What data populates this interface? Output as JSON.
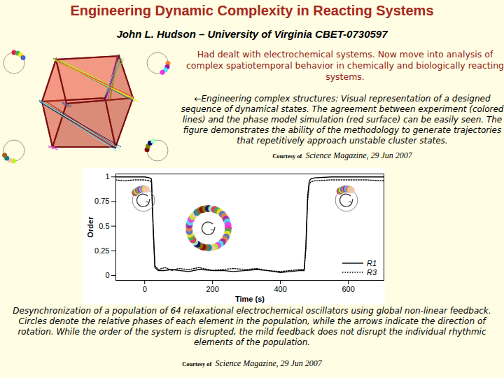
{
  "header": {
    "title": "Engineering Dynamic Complexity in Reacting Systems",
    "subtitle": "John L. Hudson – University of Virginia CBET-0730597"
  },
  "intro": "Had dealt with electrochemical systems.  Now move into analysis of complex spatiotemporal behavior in chemically and biologically reacting systems.",
  "figure_text": "←Engineering complex structures: Visual representation of a designed sequence of dynamical states.  The agreement between experiment (colored lines) and the phase model simulation (red surface) can be easily seen.  The figure demonstrates the ability of the methodology to generate trajectories that repetitively approach unstable cluster states.",
  "figure_credit": {
    "prefix": "Courtesy of",
    "source": "Science Magazine, 29 Jun 2007"
  },
  "chart_data": {
    "type": "line",
    "x_label": "Time (s)",
    "y_label": "Order",
    "xlim": [
      -85,
      705
    ],
    "xticks": [
      0,
      200,
      400,
      600
    ],
    "ylim": [
      -0.05,
      1.03
    ],
    "yticks": [
      0,
      0.25,
      0.5,
      0.75,
      1
    ],
    "legend": "lower right",
    "x": [
      -85,
      -60,
      -30,
      0,
      15,
      20,
      25,
      30,
      40,
      60,
      80,
      100,
      130,
      160,
      200,
      230,
      260,
      300,
      330,
      360,
      400,
      430,
      460,
      470,
      475,
      480,
      485,
      490,
      500,
      550,
      600,
      650,
      705
    ],
    "series": [
      {
        "name": "R1",
        "color": "#000000",
        "line_style": "solid",
        "values": [
          1,
          1,
          1,
          1,
          0.99,
          0.98,
          0.5,
          0.08,
          0.05,
          0.05,
          0.06,
          0.05,
          0.04,
          0.06,
          0.05,
          0.05,
          0.04,
          0.05,
          0.06,
          0.05,
          0.03,
          0.04,
          0.05,
          0.05,
          0.3,
          0.8,
          0.96,
          0.98,
          0.99,
          1,
          1,
          1,
          1
        ]
      },
      {
        "name": "R3",
        "color": "#000000",
        "line_style": "dotted",
        "values": [
          0.97,
          0.96,
          0.97,
          0.97,
          0.96,
          0.95,
          0.45,
          0.1,
          0.06,
          0.08,
          0.05,
          0.07,
          0.06,
          0.08,
          0.05,
          0.06,
          0.07,
          0.06,
          0.07,
          0.05,
          0.04,
          0.05,
          0.06,
          0.06,
          0.28,
          0.75,
          0.93,
          0.95,
          0.96,
          0.97,
          0.97,
          0.97,
          0.96
        ]
      }
    ]
  },
  "caption": "Desynchronization of a population of 64 relaxational electrochemical oscillators using global non-linear feedback.  Circles denote the relative phases of each element in the population, while the arrows indicate the direction of rotation.  While the order of the system is disrupted, the mild feedback does not disrupt the individual rhythmic elements of the population.",
  "caption_credit": {
    "prefix": "Courtesy of",
    "source": "Science Magazine, 29 Jun 2007"
  }
}
